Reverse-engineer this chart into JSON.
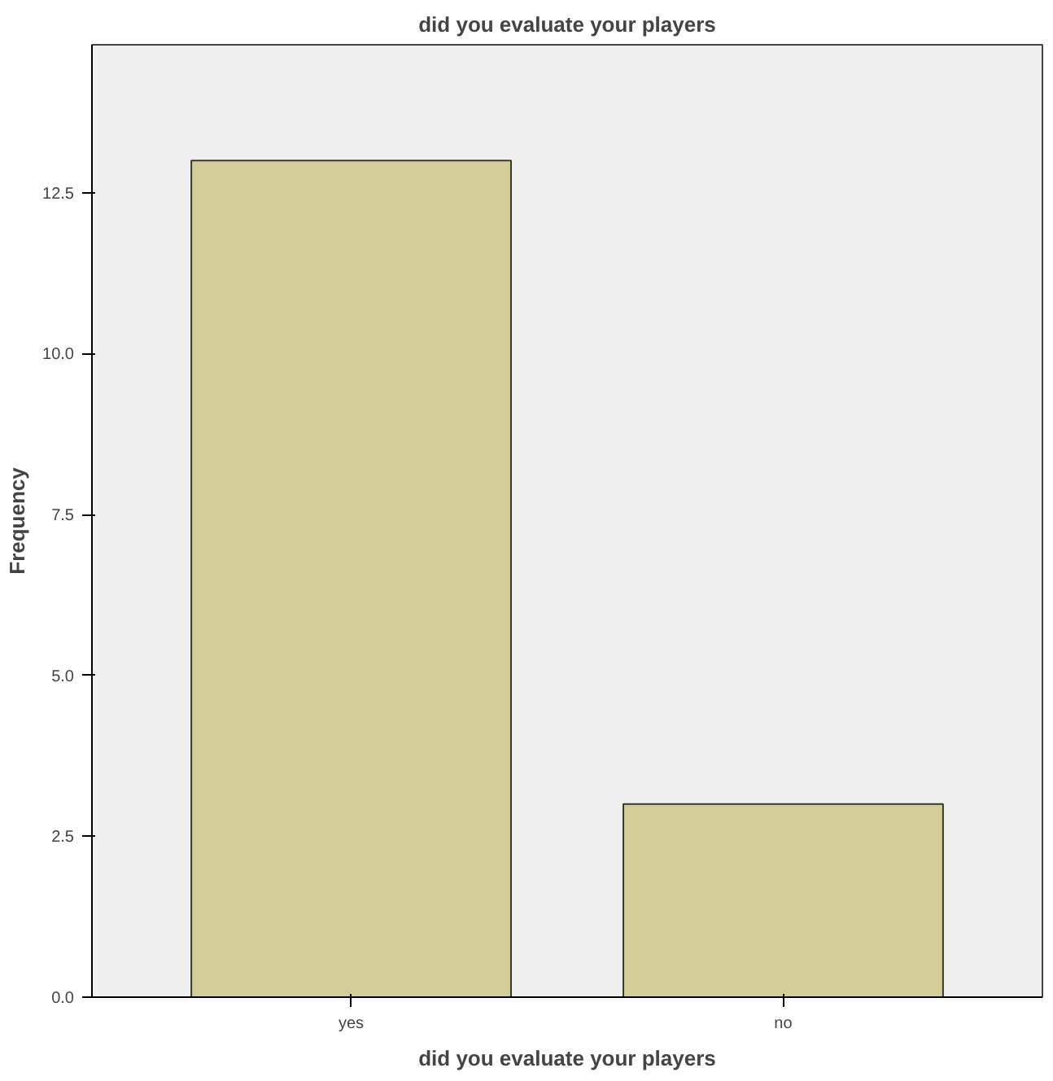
{
  "chart_data": {
    "type": "bar",
    "title": "did you evaluate your players",
    "xlabel": "did you evaluate your players",
    "ylabel": "Frequency",
    "categories": [
      "yes",
      "no"
    ],
    "values": [
      13,
      3
    ],
    "color": "#d3ce97",
    "ylim": [
      0,
      14.8
    ],
    "yticks": [
      {
        "value": 0,
        "label": "0.0"
      },
      2.5,
      {
        "value": 5,
        "label": "5.0"
      },
      7.5,
      {
        "value": 10,
        "label": "10.0"
      },
      12.5
    ],
    "grid": false
  }
}
